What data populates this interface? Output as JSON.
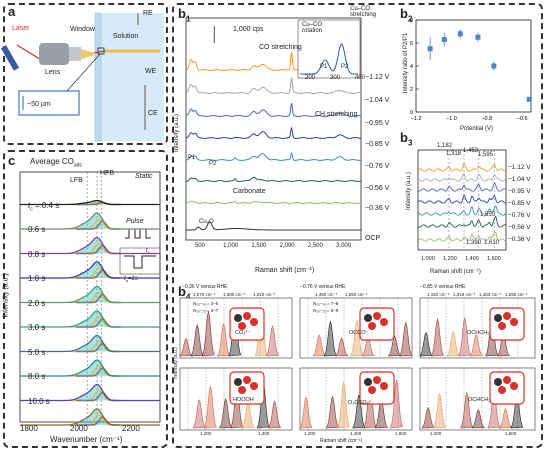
{
  "panels": {
    "a": "a",
    "b1": "b",
    "b1sub": "1",
    "b2": "b",
    "b2sub": "2",
    "b3": "b",
    "b3sub": "3",
    "b4": "b",
    "b4sub": "4",
    "c": "c"
  },
  "panel_a": {
    "laser": "Laser",
    "window": "Window",
    "lens": "Lens",
    "solution": "Solution",
    "re": "RE",
    "we": "WE",
    "ce": "CE",
    "scale": "~50 µm"
  },
  "panel_c": {
    "title": "Average CO",
    "title_sub": "ads",
    "lfb": "LFB",
    "hfb": "HFB",
    "static": "Static",
    "pulse": "Pulse",
    "tc": "t",
    "tc_sub": "c",
    "ta": "t",
    "ta_sub": "a",
    "ta_val": "=1s",
    "time_labels": [
      "tₐ = 0.4 s",
      "0.6 s",
      "0.8 s",
      "1.0 s",
      "2.0 s",
      "3.0 s",
      "5.0 s",
      "8.0 s",
      "10.0 s"
    ],
    "tc_first_prefix": "t",
    "tc_first_sub": "c",
    "tc_first_val": " = 0.4 s",
    "ylabel": "Intensity (a.u.)",
    "xlabel": "Wavenumber (cm⁻¹)",
    "xticks": [
      "1800",
      "2000",
      "2200"
    ]
  },
  "panel_b1": {
    "scale": "1,000 cps",
    "co_stretch": "CO stretching",
    "ch_stretch": "CH stretching",
    "carbonate": "Carbonate",
    "cu2o": "Cu₂O",
    "p1": "P1",
    "p2": "P2",
    "inset_rot": "Cu–CO rotation",
    "inset_str": "Cu–CO stretching",
    "inset_p1": "P1",
    "inset_p2": "P2",
    "inset_xticks": [
      "200",
      "300",
      "400"
    ],
    "ylabel": "Intensity (a.u.)",
    "xlabel": "Raman shift (cm⁻¹)",
    "xticks": [
      "500",
      "1,000",
      "1,500",
      "2,000",
      "2,500",
      "3,000"
    ],
    "curve_labels": [
      "−1.12 V",
      "−1.04 V",
      "−0.95 V",
      "−0.85 V",
      "−0.76 V",
      "−0.56 V",
      "−0.36 V",
      "OCP"
    ]
  },
  "panel_b2": {
    "ylabel": "Intensity ratio of P2/P1",
    "xlabel": "Potential (V)",
    "yticks": [
      "0",
      "2",
      "4",
      "6",
      "8"
    ],
    "xticks": [
      "−1.2",
      "−1.0",
      "−0.8",
      "−0.6"
    ]
  },
  "panel_b3": {
    "ylabel": "Intensity (a.u.)",
    "xlabel": "Raman shift (cm⁻¹)",
    "peaks": [
      "1,182",
      "1,318",
      "1,453",
      "1,595",
      "1,390",
      "1,550",
      "1,610"
    ],
    "xticks": [
      "1,000",
      "1,200",
      "1,400",
      "1,600"
    ],
    "curve_labels": [
      "−1.12 V",
      "−1.04 V",
      "−0.95 V",
      "−0.85 V",
      "−0.76 V",
      "−0.56 V",
      "−0.36 V"
    ]
  },
  "panel_b4": {
    "headers": [
      "−0.36 V versus RHE",
      "−0.76 V versus RHE",
      "−0.85 V versus RHE"
    ],
    "peak_left": [
      "1,070 cm⁻¹",
      "1,390 cm⁻¹",
      "1,610 cm⁻¹"
    ],
    "peak_mid": [
      "1,450 cm⁻¹",
      "1,550 cm⁻¹"
    ],
    "peak_right": [
      "1,182 cm⁻¹",
      "1,318 cm⁻¹",
      "1,453 cm⁻¹",
      "1,595 cm⁻¹"
    ],
    "legend_l": [
      "N₂ₒ–₂ₒ = 3–5",
      "N₂ₒ–₂ₒ = 6–7"
    ],
    "legend_m": [
      "N₂ₒ–₂ₒ = 7–8",
      "N₂ₒ–₂ₒ = 8–9"
    ],
    "molecules": [
      "CO₃²⁻",
      "OCCO⁻",
      "OCHCH₂",
      "HOOOH",
      "O₂CCO₂²⁻",
      "OCHCH₃"
    ],
    "ylabel": "Intensity (a.u.)",
    "xlabel": "Raman shift (cm⁻¹)",
    "xticks": [
      "1,200",
      "1,300",
      "1,200",
      "1,400",
      "1,600",
      "1,200",
      "1,600"
    ]
  },
  "chart_data": [
    {
      "type": "line",
      "title": "Average CO_ads",
      "xlabel": "Wavenumber (cm⁻¹)",
      "ylabel": "Intensity (a.u.)",
      "xlim": [
        1800,
        2300
      ],
      "series": [
        {
          "name": "Static"
        },
        {
          "name": "t_c = 0.4 s"
        },
        {
          "name": "0.6 s"
        },
        {
          "name": "0.8 s"
        },
        {
          "name": "1.0 s"
        },
        {
          "name": "2.0 s"
        },
        {
          "name": "3.0 s"
        },
        {
          "name": "5.0 s"
        },
        {
          "name": "8.0 s"
        },
        {
          "name": "10.0 s"
        }
      ]
    },
    {
      "type": "line",
      "xlabel": "Raman shift (cm⁻¹)",
      "ylabel": "Intensity (a.u.)",
      "xlim": [
        200,
        3300
      ],
      "series": [
        {
          "name": "−1.12 V"
        },
        {
          "name": "−1.04 V"
        },
        {
          "name": "−0.95 V"
        },
        {
          "name": "−0.85 V"
        },
        {
          "name": "−0.76 V"
        },
        {
          "name": "−0.56 V"
        },
        {
          "name": "−0.36 V"
        },
        {
          "name": "OCP"
        }
      ]
    },
    {
      "type": "scatter",
      "xlabel": "Potential (V)",
      "ylabel": "Intensity ratio of P2/P1",
      "xlim": [
        -1.2,
        -0.55
      ],
      "ylim": [
        0,
        8
      ],
      "x": [
        -1.12,
        -1.04,
        -0.95,
        -0.85,
        -0.76,
        -0.56
      ],
      "y": [
        5.5,
        6.3,
        6.8,
        6.5,
        4.0,
        1.1
      ],
      "err": [
        1.0,
        0.6,
        0.4,
        0.4,
        0.4,
        0.2
      ]
    },
    {
      "type": "line",
      "xlabel": "Raman shift (cm⁻¹)",
      "ylabel": "Intensity (a.u.)",
      "xlim": [
        900,
        1700
      ],
      "series": [
        {
          "name": "−1.12 V"
        },
        {
          "name": "−1.04 V"
        },
        {
          "name": "−0.95 V"
        },
        {
          "name": "−0.85 V"
        },
        {
          "name": "−0.76 V"
        },
        {
          "name": "−0.56 V"
        },
        {
          "name": "−0.36 V"
        }
      ]
    }
  ],
  "colors": {
    "b1": [
      "#f29a2e",
      "#a9a9a9",
      "#4766c8",
      "#2e3ea0",
      "#3a8ec2",
      "#1f5e54",
      "#8fc06a",
      "#333333"
    ],
    "c": [
      "#6b8f6b",
      "#8a3f9c",
      "#3a3aa0",
      "#4aa46a",
      "#2ea38a",
      "#3a70a0",
      "#2e8a8a",
      "#4a4ab0",
      "#8a6a2e"
    ],
    "accent": "#1f5fb4",
    "red": "#d8332a"
  }
}
